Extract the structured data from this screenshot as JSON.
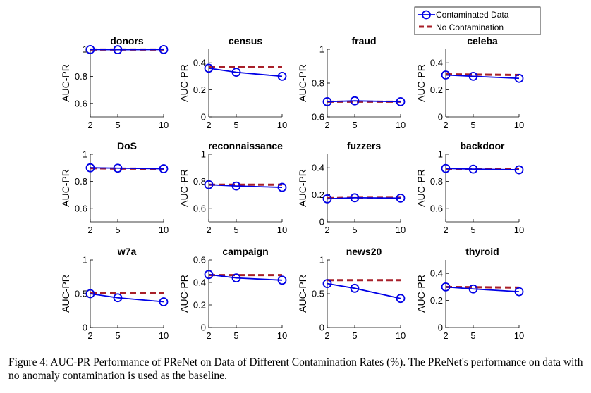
{
  "legend": {
    "contaminated": "Contaminated Data",
    "baseline": "No Contamination"
  },
  "colors": {
    "contaminated": "#0000e6",
    "baseline": "#a8202a"
  },
  "caption": "Figure 4: AUC-PR Performance of PReNet on Data of Different Contamination Rates (%). The PReNet's performance on data with no anomaly contamination is used as the baseline.",
  "chart_data": [
    {
      "type": "line",
      "title": "donors",
      "ylabel": "AUC-PR",
      "x": [
        2,
        5,
        10
      ],
      "xticks": [
        "2",
        "5",
        "10"
      ],
      "ylim": [
        0.5,
        1
      ],
      "yticks": [
        0.6,
        0.8,
        1
      ],
      "yticklabels": [
        "0.6",
        "0.8",
        "1"
      ],
      "series": [
        {
          "name": "Contaminated Data",
          "values": [
            0.998,
            0.997,
            0.998
          ]
        },
        {
          "name": "No Contamination",
          "values": [
            0.998,
            0.998,
            0.998
          ]
        }
      ]
    },
    {
      "type": "line",
      "title": "census",
      "ylabel": "AUC-PR",
      "x": [
        2,
        5,
        10
      ],
      "xticks": [
        "2",
        "5",
        "10"
      ],
      "ylim": [
        0,
        0.5
      ],
      "yticks": [
        0,
        0.2,
        0.4
      ],
      "yticklabels": [
        "0",
        "0.2",
        "0.4"
      ],
      "series": [
        {
          "name": "Contaminated Data",
          "values": [
            0.36,
            0.33,
            0.3
          ]
        },
        {
          "name": "No Contamination",
          "values": [
            0.37,
            0.37,
            0.37
          ]
        }
      ]
    },
    {
      "type": "line",
      "title": "fraud",
      "ylabel": "AUC-PR",
      "x": [
        2,
        5,
        10
      ],
      "xticks": [
        "2",
        "5",
        "10"
      ],
      "ylim": [
        0.6,
        1
      ],
      "yticks": [
        0.6,
        0.8,
        1
      ],
      "yticklabels": [
        "0.6",
        "0.8",
        "1"
      ],
      "series": [
        {
          "name": "Contaminated Data",
          "values": [
            0.69,
            0.695,
            0.69
          ]
        },
        {
          "name": "No Contamination",
          "values": [
            0.69,
            0.69,
            0.69
          ]
        }
      ]
    },
    {
      "type": "line",
      "title": "celeba",
      "ylabel": "AUC-PR",
      "x": [
        2,
        5,
        10
      ],
      "xticks": [
        "2",
        "5",
        "10"
      ],
      "ylim": [
        0,
        0.5
      ],
      "yticks": [
        0,
        0.2,
        0.4
      ],
      "yticklabels": [
        "0",
        "0.2",
        "0.4"
      ],
      "series": [
        {
          "name": "Contaminated Data",
          "values": [
            0.31,
            0.3,
            0.285
          ]
        },
        {
          "name": "No Contamination",
          "values": [
            0.315,
            0.313,
            0.31
          ]
        }
      ]
    },
    {
      "type": "line",
      "title": "DoS",
      "ylabel": "AUC-PR",
      "x": [
        2,
        5,
        10
      ],
      "xticks": [
        "2",
        "5",
        "10"
      ],
      "ylim": [
        0.5,
        1
      ],
      "yticks": [
        0.6,
        0.8,
        1
      ],
      "yticklabels": [
        "0.6",
        "0.8",
        "1"
      ],
      "series": [
        {
          "name": "Contaminated Data",
          "values": [
            0.9,
            0.897,
            0.893
          ]
        },
        {
          "name": "No Contamination",
          "values": [
            0.897,
            0.894,
            0.893
          ]
        }
      ]
    },
    {
      "type": "line",
      "title": "reconnaissance",
      "ylabel": "AUC-PR",
      "x": [
        2,
        5,
        10
      ],
      "xticks": [
        "2",
        "5",
        "10"
      ],
      "ylim": [
        0.5,
        1
      ],
      "yticks": [
        0.6,
        0.8,
        1
      ],
      "yticklabels": [
        "0.6",
        "0.8",
        "1"
      ],
      "series": [
        {
          "name": "Contaminated Data",
          "values": [
            0.775,
            0.765,
            0.755
          ]
        },
        {
          "name": "No Contamination",
          "values": [
            0.775,
            0.775,
            0.775
          ]
        }
      ]
    },
    {
      "type": "line",
      "title": "fuzzers",
      "ylabel": "AUC-PR",
      "x": [
        2,
        5,
        10
      ],
      "xticks": [
        "2",
        "5",
        "10"
      ],
      "ylim": [
        0,
        0.5
      ],
      "yticks": [
        0,
        0.2,
        0.4
      ],
      "yticklabels": [
        "0",
        "0.2",
        "0.4"
      ],
      "series": [
        {
          "name": "Contaminated Data",
          "values": [
            0.17,
            0.178,
            0.175
          ]
        },
        {
          "name": "No Contamination",
          "values": [
            0.175,
            0.178,
            0.178
          ]
        }
      ]
    },
    {
      "type": "line",
      "title": "backdoor",
      "ylabel": "AUC-PR",
      "x": [
        2,
        5,
        10
      ],
      "xticks": [
        "2",
        "5",
        "10"
      ],
      "ylim": [
        0.5,
        1
      ],
      "yticks": [
        0.6,
        0.8,
        1
      ],
      "yticklabels": [
        "0.6",
        "0.8",
        "1"
      ],
      "series": [
        {
          "name": "Contaminated Data",
          "values": [
            0.895,
            0.89,
            0.885
          ]
        },
        {
          "name": "No Contamination",
          "values": [
            0.892,
            0.89,
            0.888
          ]
        }
      ]
    },
    {
      "type": "line",
      "title": "w7a",
      "ylabel": "AUC-PR",
      "x": [
        2,
        5,
        10
      ],
      "xticks": [
        "2",
        "5",
        "10"
      ],
      "ylim": [
        0,
        1
      ],
      "yticks": [
        0,
        0.5,
        1
      ],
      "yticklabels": [
        "0",
        "0.5",
        "1"
      ],
      "series": [
        {
          "name": "Contaminated Data",
          "values": [
            0.5,
            0.44,
            0.38
          ]
        },
        {
          "name": "No Contamination",
          "values": [
            0.51,
            0.51,
            0.51
          ]
        }
      ]
    },
    {
      "type": "line",
      "title": "campaign",
      "ylabel": "AUC-PR",
      "x": [
        2,
        5,
        10
      ],
      "xticks": [
        "2",
        "5",
        "10"
      ],
      "ylim": [
        0,
        0.6
      ],
      "yticks": [
        0,
        0.2,
        0.4,
        0.6
      ],
      "yticklabels": [
        "0",
        "0.2",
        "0.4",
        "0.6"
      ],
      "series": [
        {
          "name": "Contaminated Data",
          "values": [
            0.47,
            0.44,
            0.42
          ]
        },
        {
          "name": "No Contamination",
          "values": [
            0.465,
            0.465,
            0.465
          ]
        }
      ]
    },
    {
      "type": "line",
      "title": "news20",
      "ylabel": "AUC-PR",
      "x": [
        2,
        5,
        10
      ],
      "xticks": [
        "2",
        "5",
        "10"
      ],
      "ylim": [
        0,
        1
      ],
      "yticks": [
        0,
        0.5,
        1
      ],
      "yticklabels": [
        "0",
        "0.5",
        "1"
      ],
      "series": [
        {
          "name": "Contaminated Data",
          "values": [
            0.65,
            0.58,
            0.43
          ]
        },
        {
          "name": "No Contamination",
          "values": [
            0.7,
            0.7,
            0.7
          ]
        }
      ]
    },
    {
      "type": "line",
      "title": "thyroid",
      "ylabel": "AUC-PR",
      "x": [
        2,
        5,
        10
      ],
      "xticks": [
        "2",
        "5",
        "10"
      ],
      "ylim": [
        0,
        0.5
      ],
      "yticks": [
        0,
        0.2,
        0.4
      ],
      "yticklabels": [
        "0",
        "0.2",
        "0.4"
      ],
      "series": [
        {
          "name": "Contaminated Data",
          "values": [
            0.3,
            0.285,
            0.265
          ]
        },
        {
          "name": "No Contamination",
          "values": [
            0.3,
            0.298,
            0.295
          ]
        }
      ]
    }
  ]
}
